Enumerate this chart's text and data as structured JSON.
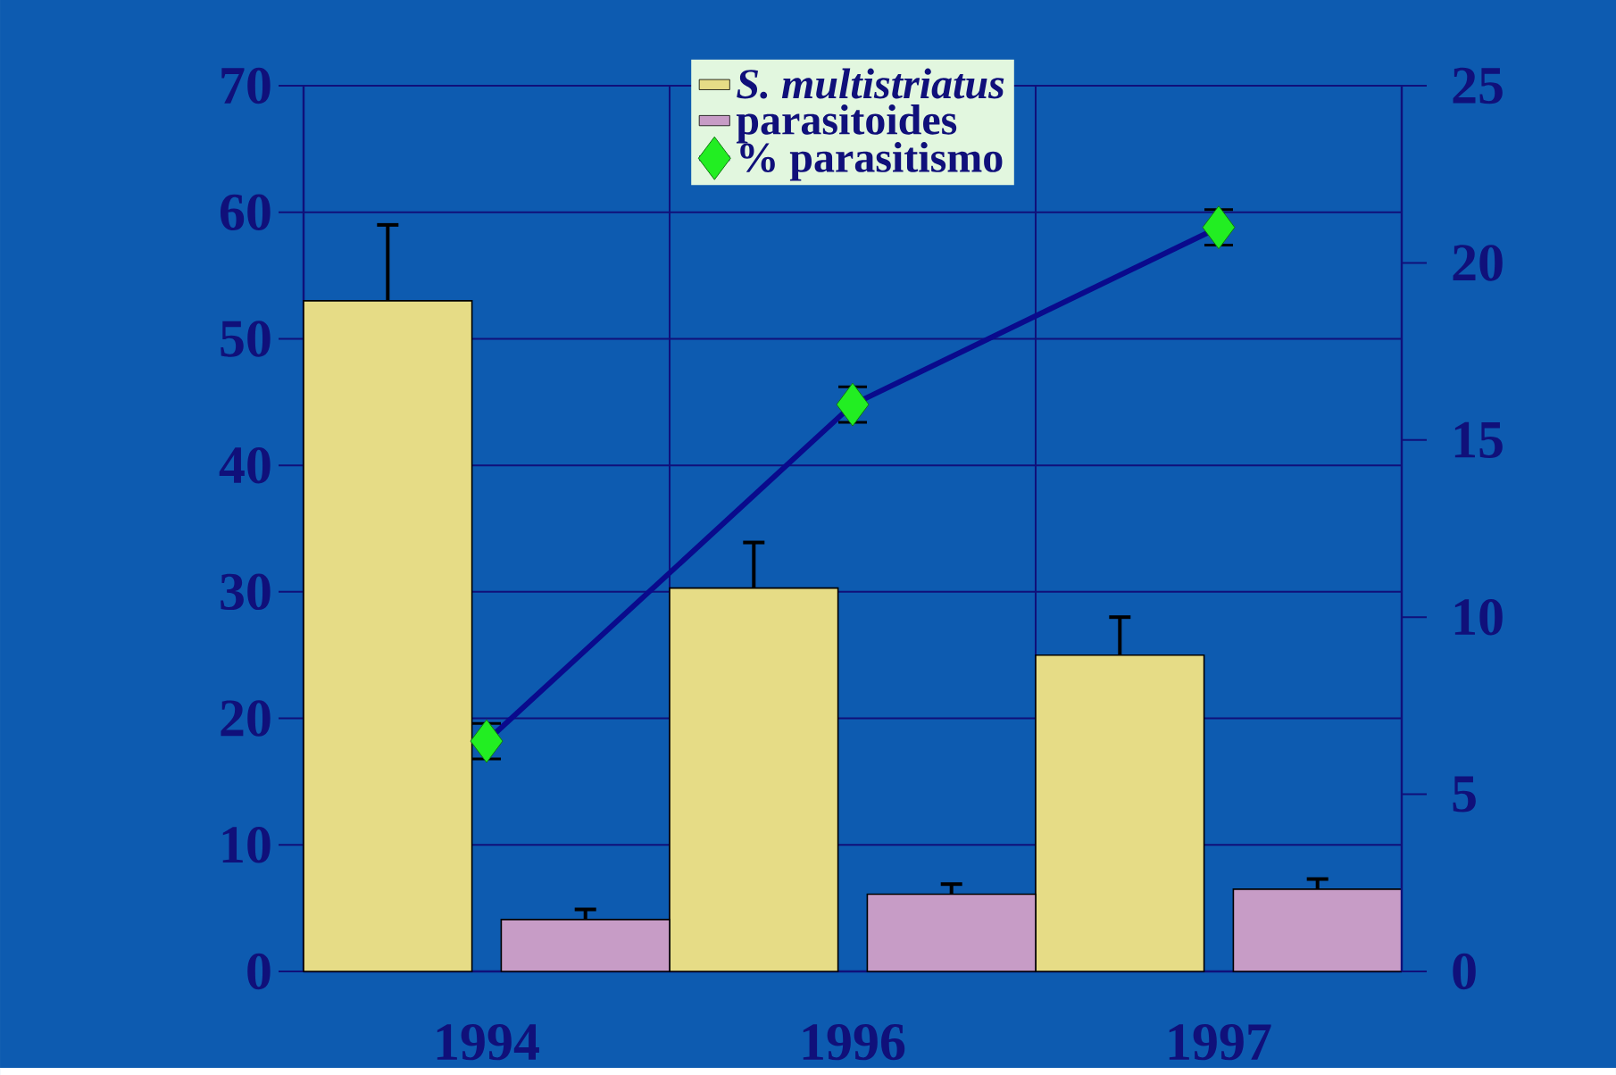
{
  "chart_data": {
    "type": "bar",
    "categories": [
      "1994",
      "1996",
      "1997"
    ],
    "series": [
      {
        "name": "*S. multistriatus*",
        "color": "#e6dc86",
        "values": [
          53,
          30.3,
          25
        ],
        "errors": [
          6,
          3.6,
          3
        ]
      },
      {
        "name": "parasitoides",
        "color": "#c79cc6",
        "values": [
          4.1,
          6.1,
          6.5
        ],
        "errors": [
          0.8,
          0.8,
          0.8
        ]
      },
      {
        "name": "% parasitismo",
        "type": "line",
        "axis": "y2",
        "color": "#0a0a8c",
        "marker": "diamond",
        "values": [
          6.5,
          16,
          21
        ],
        "errors": [
          0.5,
          0.5,
          0.5
        ]
      }
    ],
    "ylim": [
      0,
      70
    ],
    "yticks": [
      0,
      10,
      20,
      30,
      40,
      50,
      60,
      70
    ],
    "y2lim": [
      0,
      25
    ],
    "y2ticks": [
      0,
      5,
      10,
      15,
      20,
      25
    ],
    "grid": true,
    "legend": "top"
  }
}
